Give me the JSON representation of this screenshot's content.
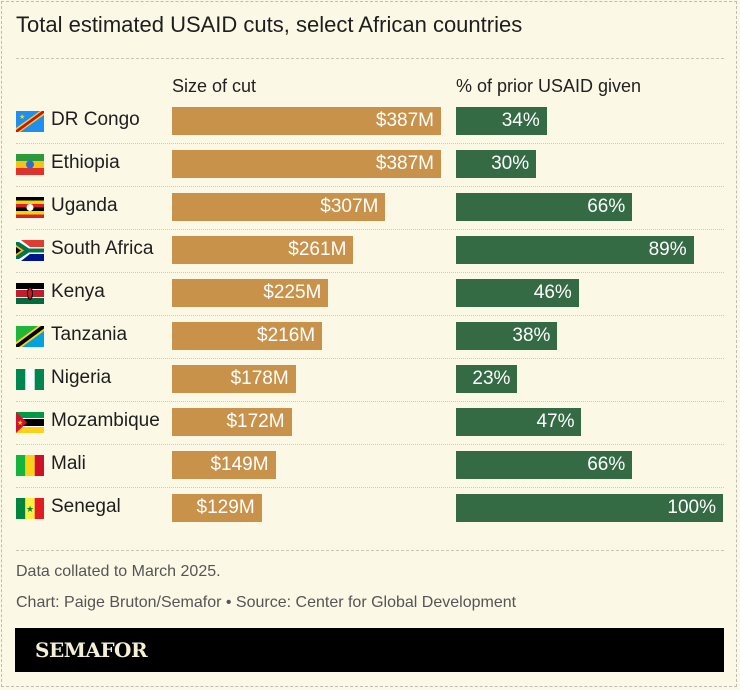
{
  "chart_data": {
    "type": "bar",
    "title": "Total estimated USAID cuts, select African countries",
    "categories": [
      "DR Congo",
      "Ethiopia",
      "Uganda",
      "South Africa",
      "Kenya",
      "Tanzania",
      "Nigeria",
      "Mozambique",
      "Mali",
      "Senegal"
    ],
    "flags": [
      "cd",
      "et",
      "ug",
      "za",
      "ke",
      "tz",
      "ng",
      "mz",
      "ml",
      "sn"
    ],
    "series": [
      {
        "name": "Size of cut",
        "values": [
          387,
          387,
          307,
          261,
          225,
          216,
          178,
          172,
          149,
          129
        ],
        "labels": [
          "$387M",
          "$387M",
          "$307M",
          "$261M",
          "$225M",
          "$216M",
          "$178M",
          "$172M",
          "$149M",
          "$129M"
        ],
        "color": "#c9924a"
      },
      {
        "name": "% of prior USAID given",
        "values": [
          34,
          30,
          66,
          89,
          46,
          38,
          23,
          47,
          66,
          100
        ],
        "labels": [
          "34%",
          "30%",
          "66%",
          "89%",
          "46%",
          "38%",
          "23%",
          "47%",
          "66%",
          "100%"
        ],
        "color": "#346b45"
      }
    ],
    "grid": false
  },
  "footer": {
    "note": "Data collated to March 2025.",
    "credit": "Chart: Paige Bruton/Semafor • Source: Center for Global Development",
    "logo": "SEMAFOR"
  }
}
